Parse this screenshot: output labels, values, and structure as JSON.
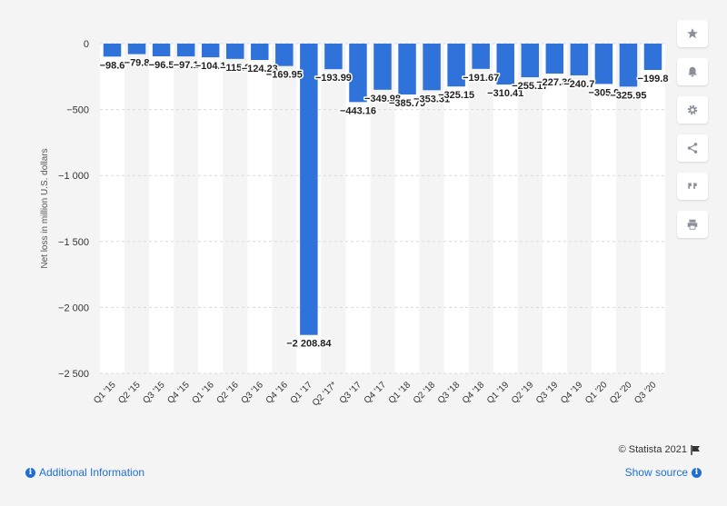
{
  "chart_data": {
    "type": "bar",
    "categories": [
      "Q1 '15",
      "Q2 '15",
      "Q3 '15",
      "Q4 '15",
      "Q1 '16",
      "Q2 '16",
      "Q3 '16",
      "Q4 '16",
      "Q1 '17",
      "Q2 '17*",
      "Q3 '17",
      "Q4 '17",
      "Q1 '18",
      "Q2 '18",
      "Q3 '18",
      "Q4 '18",
      "Q1 '19",
      "Q2 '19",
      "Q3 '19",
      "Q4 '19",
      "Q1 '20",
      "Q2 '20",
      "Q3 '20"
    ],
    "values": [
      -98.6,
      -79.8,
      -96.5,
      -97.1,
      -104.1,
      -115.9,
      -124.23,
      -169.95,
      -2208.84,
      -193.99,
      -443.16,
      -349.98,
      -385.79,
      -353.31,
      -325.15,
      -191.67,
      -310.41,
      -255.17,
      -227.36,
      -240.7,
      -305.9,
      -325.95,
      -199.8
    ],
    "value_labels": [
      "−98.6",
      "−79.8",
      "−96.5",
      "−97.1",
      "−104.1",
      "−115.9",
      "−124.23",
      "−169.95",
      "−2 208.84",
      "−193.99",
      "−443.16",
      "−349.98",
      "−385.79",
      "−353.31",
      "−325.15",
      "−191.67",
      "−310.41",
      "−255.17",
      "−227.36",
      "−240.7",
      "−305.9",
      "−325.95",
      "−199.8"
    ],
    "ylabel": "Net loss in million U.S. dollars",
    "xlabel": "",
    "ylim": [
      -2500,
      0
    ],
    "yticks": [
      0,
      -500,
      -1000,
      -1500,
      -2000,
      -2500
    ],
    "ytick_labels": [
      "0",
      "−500",
      "−1 000",
      "−1 500",
      "−2 000",
      "−2 500"
    ],
    "bar_color": "#2f72d9",
    "grid": true
  },
  "sidebar": {
    "buttons": [
      {
        "name": "star-icon"
      },
      {
        "name": "bell-icon"
      },
      {
        "name": "gear-icon"
      },
      {
        "name": "share-icon"
      },
      {
        "name": "quote-icon"
      },
      {
        "name": "print-icon"
      }
    ]
  },
  "footer": {
    "credit": "© Statista 2021",
    "additional_info": "Additional Information",
    "show_source": "Show source"
  },
  "colors": {
    "link": "#1f6fd1",
    "background": "#f4f4f4"
  }
}
